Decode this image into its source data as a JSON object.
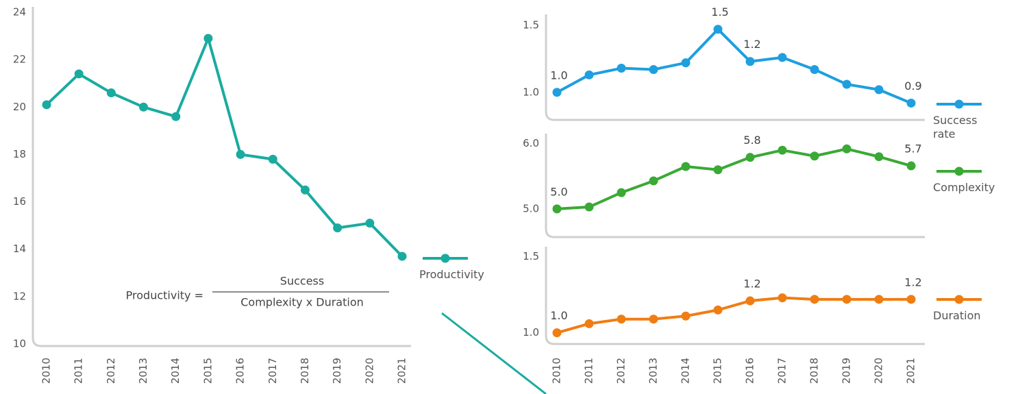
{
  "chart_data": [
    {
      "type": "line",
      "categories": [
        "2010",
        "2011",
        "2012",
        "2013",
        "2014",
        "2015",
        "2016",
        "2017",
        "2018",
        "2019",
        "2020",
        "2021"
      ],
      "series": [
        {
          "name": "Productivity",
          "color": "#1aaba0",
          "values": [
            20.1,
            21.4,
            20.6,
            20.0,
            19.6,
            22.9,
            18.0,
            17.8,
            16.5,
            14.9,
            15.1,
            13.7
          ]
        }
      ],
      "ylim": [
        10,
        24
      ],
      "yticks": [
        10,
        12,
        14,
        16,
        18,
        20,
        22,
        24
      ],
      "annotation": {
        "lhs": "Productivity =",
        "numerator": "Success",
        "denominator": "Complexity x Duration"
      }
    },
    {
      "type": "line",
      "series": [
        {
          "name": "Success rate",
          "color": "#1e9fdf",
          "values": [
            1.0,
            1.13,
            1.18,
            1.17,
            1.22,
            1.47,
            1.23,
            1.26,
            1.17,
            1.06,
            1.02,
            0.92
          ],
          "value_labels": [
            "1.0",
            null,
            null,
            null,
            null,
            "1.5",
            "1.2",
            null,
            null,
            null,
            null,
            "0.9"
          ]
        }
      ],
      "ylim": [
        0.81,
        1.54
      ],
      "yticks": [
        {
          "value": 1.0,
          "label": "1.0"
        },
        1.5
      ]
    },
    {
      "type": "line",
      "series": [
        {
          "name": "Complexity",
          "color": "#3aa935",
          "values": [
            5.0,
            5.03,
            5.25,
            5.43,
            5.65,
            5.6,
            5.79,
            5.9,
            5.81,
            5.92,
            5.8,
            5.66
          ],
          "value_labels": [
            "5.0",
            null,
            null,
            null,
            null,
            null,
            "5.8",
            null,
            null,
            null,
            null,
            "5.7"
          ]
        }
      ],
      "ylim": [
        4.6,
        6.07
      ],
      "yticks": [
        {
          "value": 5.0,
          "label": "5.0"
        },
        {
          "value": 6.0,
          "label": "6.0"
        }
      ]
    },
    {
      "type": "line",
      "categories": [
        "2010",
        "2011",
        "2012",
        "2013",
        "2014",
        "2015",
        "2016",
        "2017",
        "2018",
        "2019",
        "2020",
        "2021"
      ],
      "series": [
        {
          "name": "Duration",
          "color": "#f07d12",
          "values": [
            1.0,
            1.06,
            1.09,
            1.09,
            1.11,
            1.15,
            1.21,
            1.23,
            1.22,
            1.22,
            1.22,
            1.22
          ],
          "value_labels": [
            "1.0",
            null,
            null,
            null,
            null,
            null,
            "1.2",
            null,
            null,
            null,
            null,
            "1.2"
          ]
        }
      ],
      "ylim": [
        0.94,
        1.53
      ],
      "yticks": [
        {
          "value": 1.0,
          "label": "1.0"
        },
        1.5
      ]
    }
  ]
}
